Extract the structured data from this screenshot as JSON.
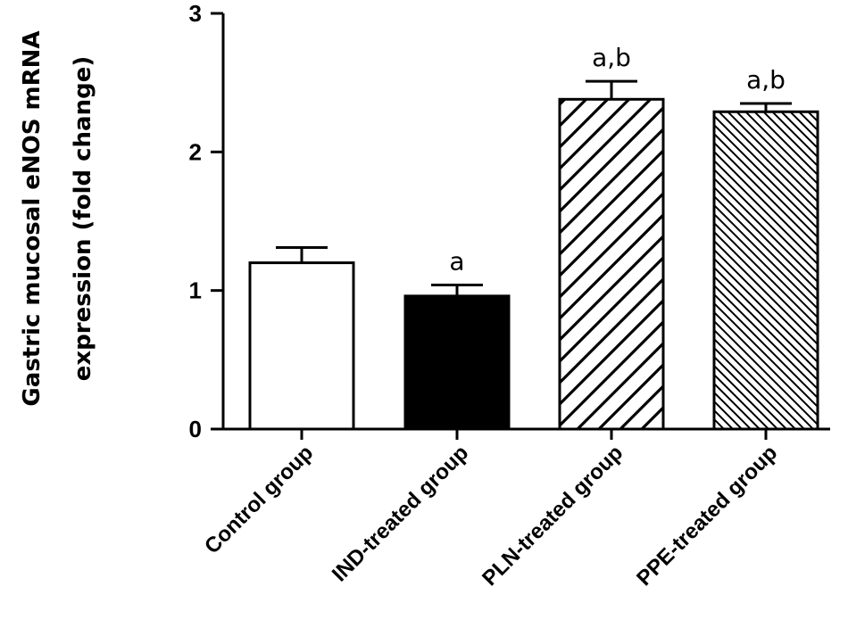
{
  "chart_data": {
    "type": "bar",
    "title": "",
    "xlabel": "",
    "ylabel": [
      "Gastric mucosal eNOS mRNA",
      "expression (fold change)"
    ],
    "ylim": [
      0,
      3
    ],
    "yticks": [
      0,
      1,
      2,
      3
    ],
    "grid": false,
    "categories": [
      "Control group",
      "IND-treated group",
      "PLN-treated group",
      "PPE-treated group"
    ],
    "values": [
      1.2,
      0.96,
      2.38,
      2.29
    ],
    "errors": [
      0.11,
      0.08,
      0.13,
      0.06
    ],
    "annotations": [
      "",
      "a",
      "a,b",
      "a,b"
    ],
    "fills": [
      "white",
      "black",
      "hatch-wide",
      "hatch-fine"
    ]
  }
}
